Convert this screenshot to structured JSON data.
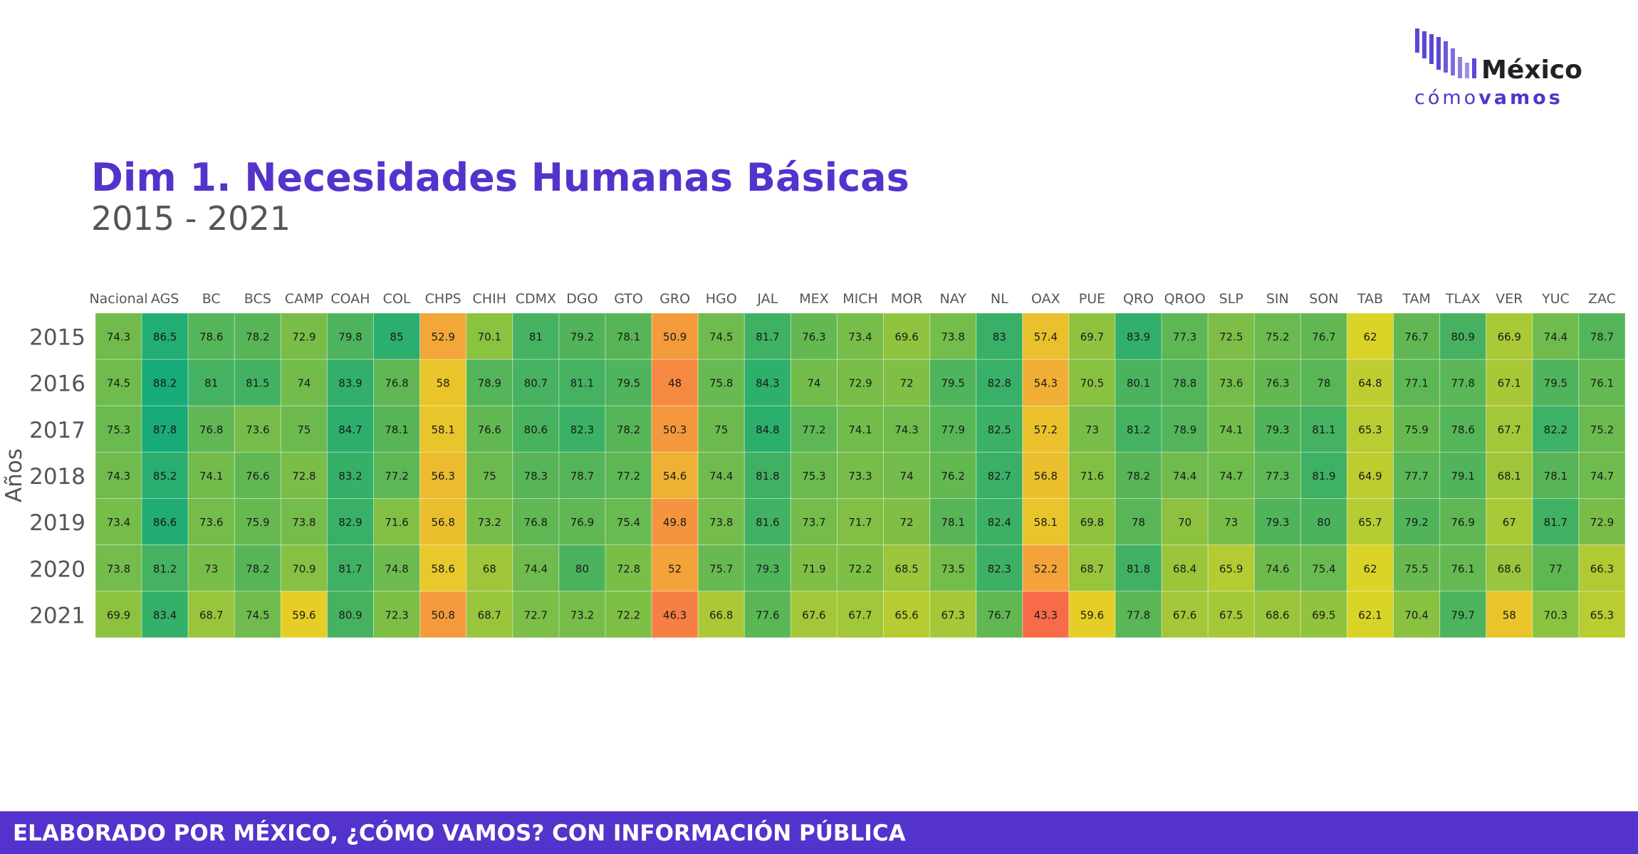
{
  "logo": {
    "word1": "México",
    "word2_light": "cómo",
    "word2_bold": "vamos",
    "colors": {
      "bars": "#5b48d6",
      "word1": "#222222",
      "word2": "#5433cc"
    }
  },
  "footer": {
    "text": "ELABORADO POR MÉXICO, ¿CÓMO VAMOS? CON INFORMACIÓN PÚBLICA",
    "color": "#5433cc"
  },
  "chart_data": {
    "type": "heatmap",
    "title": "Dim 1. Necesidades Humanas Básicas",
    "subtitle": "2015 - 2021",
    "ylabel": "Años",
    "xlabel": "",
    "x": [
      "Nacional",
      "AGS",
      "BC",
      "BCS",
      "CAMP",
      "COAH",
      "COL",
      "CHPS",
      "CHIH",
      "CDMX",
      "DGO",
      "GTO",
      "GRO",
      "HGO",
      "JAL",
      "MEX",
      "MICH",
      "MOR",
      "NAY",
      "NL",
      "OAX",
      "PUE",
      "QRO",
      "QROO",
      "SLP",
      "SIN",
      "SON",
      "TAB",
      "TAM",
      "TLAX",
      "VER",
      "YUC",
      "ZAC"
    ],
    "y": [
      "2015",
      "2016",
      "2017",
      "2018",
      "2019",
      "2020",
      "2021"
    ],
    "values": [
      [
        74.3,
        86.5,
        78.6,
        78.2,
        72.9,
        79.8,
        85,
        52.9,
        70.1,
        81,
        79.2,
        78.1,
        50.9,
        74.5,
        81.7,
        76.3,
        73.4,
        69.6,
        73.8,
        83,
        57.4,
        69.7,
        83.9,
        77.3,
        72.5,
        75.2,
        76.7,
        62,
        76.7,
        80.9,
        66.9,
        74.4,
        78.7
      ],
      [
        74.5,
        88.2,
        81,
        81.5,
        74,
        83.9,
        76.8,
        58,
        78.9,
        80.7,
        81.1,
        79.5,
        48,
        75.8,
        84.3,
        74,
        72.9,
        72,
        79.5,
        82.8,
        54.3,
        70.5,
        80.1,
        78.8,
        73.6,
        76.3,
        78,
        64.8,
        77.1,
        77.8,
        67.1,
        79.5,
        76.1
      ],
      [
        75.3,
        87.8,
        76.8,
        73.6,
        75,
        84.7,
        78.1,
        58.1,
        76.6,
        80.6,
        82.3,
        78.2,
        50.3,
        75,
        84.8,
        77.2,
        74.1,
        74.3,
        77.9,
        82.5,
        57.2,
        73,
        81.2,
        78.9,
        74.1,
        79.3,
        81.1,
        65.3,
        75.9,
        78.6,
        67.7,
        82.2,
        75.2
      ],
      [
        74.3,
        85.2,
        74.1,
        76.6,
        72.8,
        83.2,
        77.2,
        56.3,
        75,
        78.3,
        78.7,
        77.2,
        54.6,
        74.4,
        81.8,
        75.3,
        73.3,
        74,
        76.2,
        82.7,
        56.8,
        71.6,
        78.2,
        74.4,
        74.7,
        77.3,
        81.9,
        64.9,
        77.7,
        79.1,
        68.1,
        78.1,
        74.7
      ],
      [
        73.4,
        86.6,
        73.6,
        75.9,
        73.8,
        82.9,
        71.6,
        56.8,
        73.2,
        76.8,
        76.9,
        75.4,
        49.8,
        73.8,
        81.6,
        73.7,
        71.7,
        72,
        78.1,
        82.4,
        58.1,
        69.8,
        78,
        70,
        73,
        79.3,
        80,
        65.7,
        79.2,
        76.9,
        67,
        81.7,
        72.9
      ],
      [
        73.8,
        81.2,
        73,
        78.2,
        70.9,
        81.7,
        74.8,
        58.6,
        68,
        74.4,
        80,
        72.8,
        52,
        75.7,
        79.3,
        71.9,
        72.2,
        68.5,
        73.5,
        82.3,
        52.2,
        68.7,
        81.8,
        68.4,
        65.9,
        74.6,
        75.4,
        62,
        75.5,
        76.1,
        68.6,
        77,
        66.3
      ],
      [
        69.9,
        83.4,
        68.7,
        74.5,
        59.6,
        80.9,
        72.3,
        50.8,
        68.7,
        72.7,
        73.2,
        72.2,
        46.3,
        66.8,
        77.6,
        67.6,
        67.7,
        65.6,
        67.3,
        76.7,
        43.3,
        59.6,
        77.8,
        67.6,
        67.5,
        68.6,
        69.5,
        62.1,
        70.4,
        79.7,
        58,
        70.3,
        65.3
      ]
    ],
    "color_scale": [
      "#f8694a",
      "#f4a23a",
      "#e3d624",
      "#8cc240",
      "#52b45a",
      "#17ab78"
    ],
    "color_domain": [
      43,
      88
    ],
    "legend": "none",
    "grid": false
  }
}
